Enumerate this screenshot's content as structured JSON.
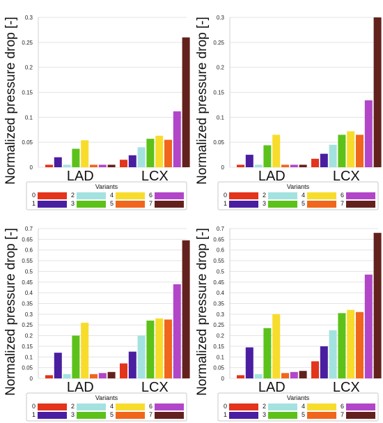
{
  "chart_data": [
    {
      "type": "bar",
      "ylabel": "Normalized pressure drop [-]",
      "categories": [
        "LAD",
        "LCX"
      ],
      "ylim": [
        0,
        0.3
      ],
      "yticks": [
        "0",
        "0.05",
        "0.1",
        "0.15",
        "0.2",
        "0.25",
        "0.3"
      ],
      "grid": true,
      "legend": {
        "title": "Variants",
        "placement": "bottom",
        "entries": [
          "0",
          "1",
          "2",
          "3",
          "4",
          "5",
          "6",
          "7"
        ]
      },
      "series": [
        {
          "name": "0",
          "values": [
            0.005,
            0.015
          ]
        },
        {
          "name": "1",
          "values": [
            0.02,
            0.024
          ]
        },
        {
          "name": "2",
          "values": [
            0.005,
            0.04
          ]
        },
        {
          "name": "3",
          "values": [
            0.037,
            0.057
          ]
        },
        {
          "name": "4",
          "values": [
            0.054,
            0.063
          ]
        },
        {
          "name": "5",
          "values": [
            0.005,
            0.055
          ]
        },
        {
          "name": "6",
          "values": [
            0.005,
            0.112
          ]
        },
        {
          "name": "7",
          "values": [
            0.005,
            0.26
          ]
        }
      ]
    },
    {
      "type": "bar",
      "ylabel": "Normalized pressure drop [-]",
      "categories": [
        "LAD",
        "LCX"
      ],
      "ylim": [
        0,
        0.3
      ],
      "yticks": [
        "0",
        "0.05",
        "0.1",
        "0.15",
        "0.2",
        "0.25",
        "0.3"
      ],
      "grid": true,
      "legend": {
        "title": "Variants",
        "placement": "bottom",
        "entries": [
          "0",
          "1",
          "2",
          "3",
          "4",
          "5",
          "6",
          "7"
        ]
      },
      "series": [
        {
          "name": "0",
          "values": [
            0.005,
            0.017
          ]
        },
        {
          "name": "1",
          "values": [
            0.025,
            0.027
          ]
        },
        {
          "name": "2",
          "values": [
            0.005,
            0.045
          ]
        },
        {
          "name": "3",
          "values": [
            0.044,
            0.065
          ]
        },
        {
          "name": "4",
          "values": [
            0.065,
            0.072
          ]
        },
        {
          "name": "5",
          "values": [
            0.005,
            0.065
          ]
        },
        {
          "name": "6",
          "values": [
            0.005,
            0.134
          ]
        },
        {
          "name": "7",
          "values": [
            0.005,
            0.3
          ]
        }
      ]
    },
    {
      "type": "bar",
      "ylabel": "Normalized pressure drop [-]",
      "categories": [
        "LAD",
        "LCX"
      ],
      "ylim": [
        0,
        0.7
      ],
      "yticks": [
        "0",
        "0.05",
        "0.1",
        "0.15",
        "0.2",
        "0.25",
        "0.3",
        "0.35",
        "0.4",
        "0.45",
        "0.5",
        "0.55",
        "0.6",
        "0.65",
        "0.7"
      ],
      "grid": true,
      "legend": {
        "title": "Variants",
        "placement": "bottom",
        "entries": [
          "0",
          "1",
          "2",
          "3",
          "4",
          "5",
          "6",
          "7"
        ]
      },
      "series": [
        {
          "name": "0",
          "values": [
            0.015,
            0.07
          ]
        },
        {
          "name": "1",
          "values": [
            0.12,
            0.125
          ]
        },
        {
          "name": "2",
          "values": [
            0.02,
            0.2
          ]
        },
        {
          "name": "3",
          "values": [
            0.2,
            0.27
          ]
        },
        {
          "name": "4",
          "values": [
            0.26,
            0.28
          ]
        },
        {
          "name": "5",
          "values": [
            0.02,
            0.275
          ]
        },
        {
          "name": "6",
          "values": [
            0.025,
            0.44
          ]
        },
        {
          "name": "7",
          "values": [
            0.03,
            0.645
          ]
        }
      ]
    },
    {
      "type": "bar",
      "ylabel": "Normalized pressure drop [-]",
      "categories": [
        "LAD",
        "LCX"
      ],
      "ylim": [
        0,
        0.7
      ],
      "yticks": [
        "0",
        "0.05",
        "0.1",
        "0.15",
        "0.2",
        "0.25",
        "0.3",
        "0.35",
        "0.4",
        "0.45",
        "0.5",
        "0.55",
        "0.6",
        "0.65",
        "0.7"
      ],
      "grid": true,
      "legend": {
        "title": "Variants",
        "placement": "bottom",
        "entries": [
          "0",
          "1",
          "2",
          "3",
          "4",
          "5",
          "6",
          "7"
        ]
      },
      "series": [
        {
          "name": "0",
          "values": [
            0.015,
            0.08
          ]
        },
        {
          "name": "1",
          "values": [
            0.145,
            0.15
          ]
        },
        {
          "name": "2",
          "values": [
            0.02,
            0.225
          ]
        },
        {
          "name": "3",
          "values": [
            0.235,
            0.305
          ]
        },
        {
          "name": "4",
          "values": [
            0.3,
            0.32
          ]
        },
        {
          "name": "5",
          "values": [
            0.025,
            0.31
          ]
        },
        {
          "name": "6",
          "values": [
            0.03,
            0.485
          ]
        },
        {
          "name": "7",
          "values": [
            0.035,
            0.68
          ]
        }
      ]
    }
  ],
  "colors": [
    "#e3341c",
    "#4a1ea0",
    "#a4e2e0",
    "#5cc21a",
    "#f8dc2c",
    "#f0661c",
    "#b246c8",
    "#63211e"
  ]
}
